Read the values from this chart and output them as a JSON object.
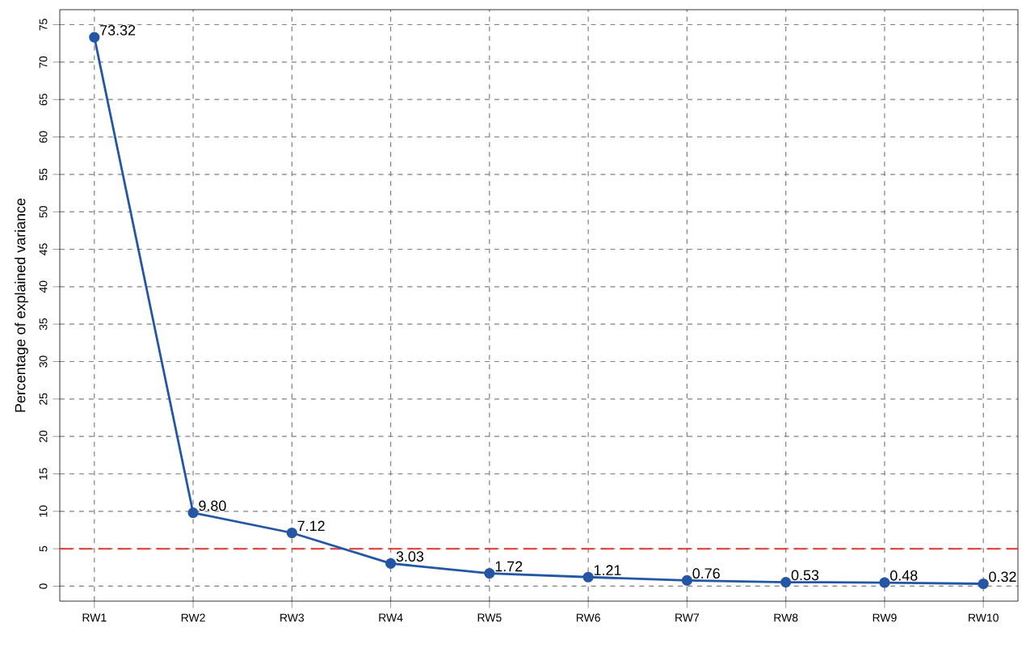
{
  "chart_data": {
    "type": "line",
    "ylabel": "Percentage of explained variance",
    "categories": [
      "RW1",
      "RW2",
      "RW3",
      "RW4",
      "RW5",
      "RW6",
      "RW7",
      "RW8",
      "RW9",
      "RW10"
    ],
    "series": [
      {
        "color": "#2456a6",
        "values": [
          73.32,
          9.8,
          7.12,
          3.03,
          1.72,
          1.21,
          0.76,
          0.53,
          0.48,
          0.32
        ],
        "value_labels": [
          "73.32",
          "9.80",
          "7.12",
          "3.03",
          "1.72",
          "1.21",
          "0.76",
          "0.53",
          "0.48",
          "0.32"
        ]
      }
    ],
    "ylim": [
      -2,
      77
    ],
    "yticks": [
      0,
      5,
      10,
      15,
      20,
      25,
      30,
      35,
      40,
      45,
      50,
      55,
      60,
      65,
      70,
      75
    ],
    "grid": true,
    "marker": "circle",
    "line_style": "solid",
    "ref_lines": [
      {
        "axis": "y",
        "value": 5,
        "color": "#e8372e",
        "line_style": "dashed"
      }
    ]
  }
}
